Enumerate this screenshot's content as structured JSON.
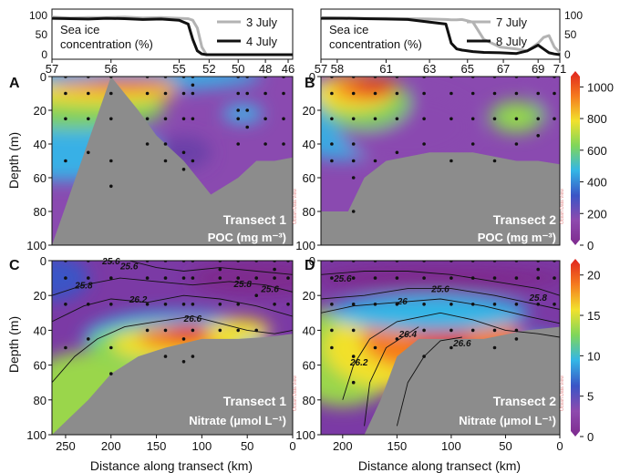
{
  "figure": {
    "panel_letters": [
      "A",
      "B",
      "C",
      "D"
    ],
    "depth_axis_label": "Depth (m)",
    "distance_axis_label": "Distance along transect (km)",
    "depth_ticks": [
      "0",
      "20",
      "40",
      "60",
      "80",
      "100"
    ],
    "distance_ticks_t1": [
      "250",
      "200",
      "150",
      "100",
      "50",
      "0"
    ],
    "distance_ticks_t2": [
      "200",
      "150",
      "100",
      "50",
      "0"
    ],
    "poc_colorbar_ticks": [
      "1000",
      "800",
      "600",
      "400",
      "200",
      "0"
    ],
    "nitrate_colorbar_ticks": [
      "20",
      "15",
      "10",
      "5",
      "0"
    ],
    "watermark": "Ocean Data View"
  },
  "colors": {
    "seafloor": "#8c8c8c",
    "series_first_day": "#b3b3b3",
    "series_second_day": "#111111",
    "colormap": [
      "#7e2a8e",
      "#8e4aae",
      "#3a55c6",
      "#33b6e6",
      "#7fd65a",
      "#f2e12c",
      "#f57a1e",
      "#e0241f"
    ]
  },
  "chart_data": [
    {
      "type": "line",
      "panel": "top-left",
      "ylabel": "Sea ice concentration (%)",
      "ylabel_line1": "Sea ice",
      "ylabel_line2": "concentration (%)",
      "yticks": [
        "100",
        "50",
        "0"
      ],
      "ylim": [
        0,
        100
      ],
      "station_ticks": [
        "57",
        "56",
        "55",
        "52",
        "50",
        "48",
        "46"
      ],
      "x": [
        265,
        245,
        225,
        205,
        185,
        165,
        145,
        125,
        115,
        110,
        105,
        100,
        95,
        80,
        60,
        40,
        20,
        0
      ],
      "series": [
        {
          "name": "3 July",
          "values": [
            98,
            96,
            97,
            97,
            98,
            96,
            97,
            95,
            94,
            90,
            70,
            20,
            0,
            0,
            0,
            0,
            0,
            0
          ]
        },
        {
          "name": "4 July",
          "values": [
            95,
            94,
            93,
            95,
            94,
            92,
            93,
            90,
            80,
            40,
            10,
            2,
            0,
            0,
            0,
            0,
            0,
            0
          ]
        }
      ]
    },
    {
      "type": "line",
      "panel": "top-right",
      "ylabel": "Sea ice concentration (%)",
      "ylabel_line1": "Sea ice",
      "ylabel_line2": "concentration (%)",
      "yticks": [
        "100",
        "50",
        "0"
      ],
      "ylim": [
        0,
        100
      ],
      "station_ticks": [
        "57",
        "58",
        "61",
        "63",
        "65",
        "67",
        "69",
        "71"
      ],
      "x": [
        220,
        200,
        180,
        160,
        140,
        120,
        105,
        100,
        95,
        90,
        80,
        70,
        55,
        40,
        30,
        20,
        15,
        10,
        5,
        0
      ],
      "series": [
        {
          "name": "7 July",
          "values": [
            97,
            96,
            95,
            95,
            94,
            93,
            92,
            91,
            91,
            92,
            85,
            40,
            20,
            15,
            10,
            30,
            45,
            50,
            20,
            5
          ]
        },
        {
          "name": "8 July",
          "values": [
            95,
            95,
            94,
            93,
            92,
            85,
            80,
            30,
            15,
            12,
            8,
            6,
            5,
            3,
            10,
            25,
            15,
            5,
            2,
            0
          ]
        }
      ]
    },
    {
      "type": "heatmap",
      "panel": "A",
      "transect_label": "Transect 1",
      "variable_label": "POC (mg m⁻³)",
      "xlabel": "",
      "ylabel": "Depth (m)",
      "xlim": [
        265,
        0
      ],
      "ylim": [
        0,
        100
      ],
      "clim": [
        0,
        1100
      ],
      "contours": []
    },
    {
      "type": "heatmap",
      "panel": "B",
      "transect_label": "Transect 2",
      "variable_label": "POC (mg m⁻³)",
      "xlabel": "",
      "ylabel": "",
      "xlim": [
        220,
        0
      ],
      "ylim": [
        0,
        100
      ],
      "clim": [
        0,
        1100
      ],
      "contours": []
    },
    {
      "type": "heatmap",
      "panel": "C",
      "transect_label": "Transect 1",
      "variable_label": "Nitrate (µmol L⁻¹)",
      "xlabel": "Distance along transect (km)",
      "ylabel": "Depth (m)",
      "xlim": [
        265,
        0
      ],
      "ylim": [
        0,
        100
      ],
      "clim": [
        0,
        22
      ],
      "contour_labels": [
        "25.6",
        "25.8",
        "26.2",
        "26.6",
        "25.8",
        "25.6",
        "25.6"
      ]
    },
    {
      "type": "heatmap",
      "panel": "D",
      "transect_label": "Transect 2",
      "variable_label": "Nitrate (µmol L⁻¹)",
      "xlabel": "Distance along transect (km)",
      "ylabel": "",
      "xlim": [
        220,
        0
      ],
      "ylim": [
        0,
        100
      ],
      "clim": [
        0,
        22
      ],
      "contour_labels": [
        "25.6",
        "25.6",
        "25.8",
        "26",
        "26.4",
        "26.2",
        "26.6"
      ]
    }
  ]
}
